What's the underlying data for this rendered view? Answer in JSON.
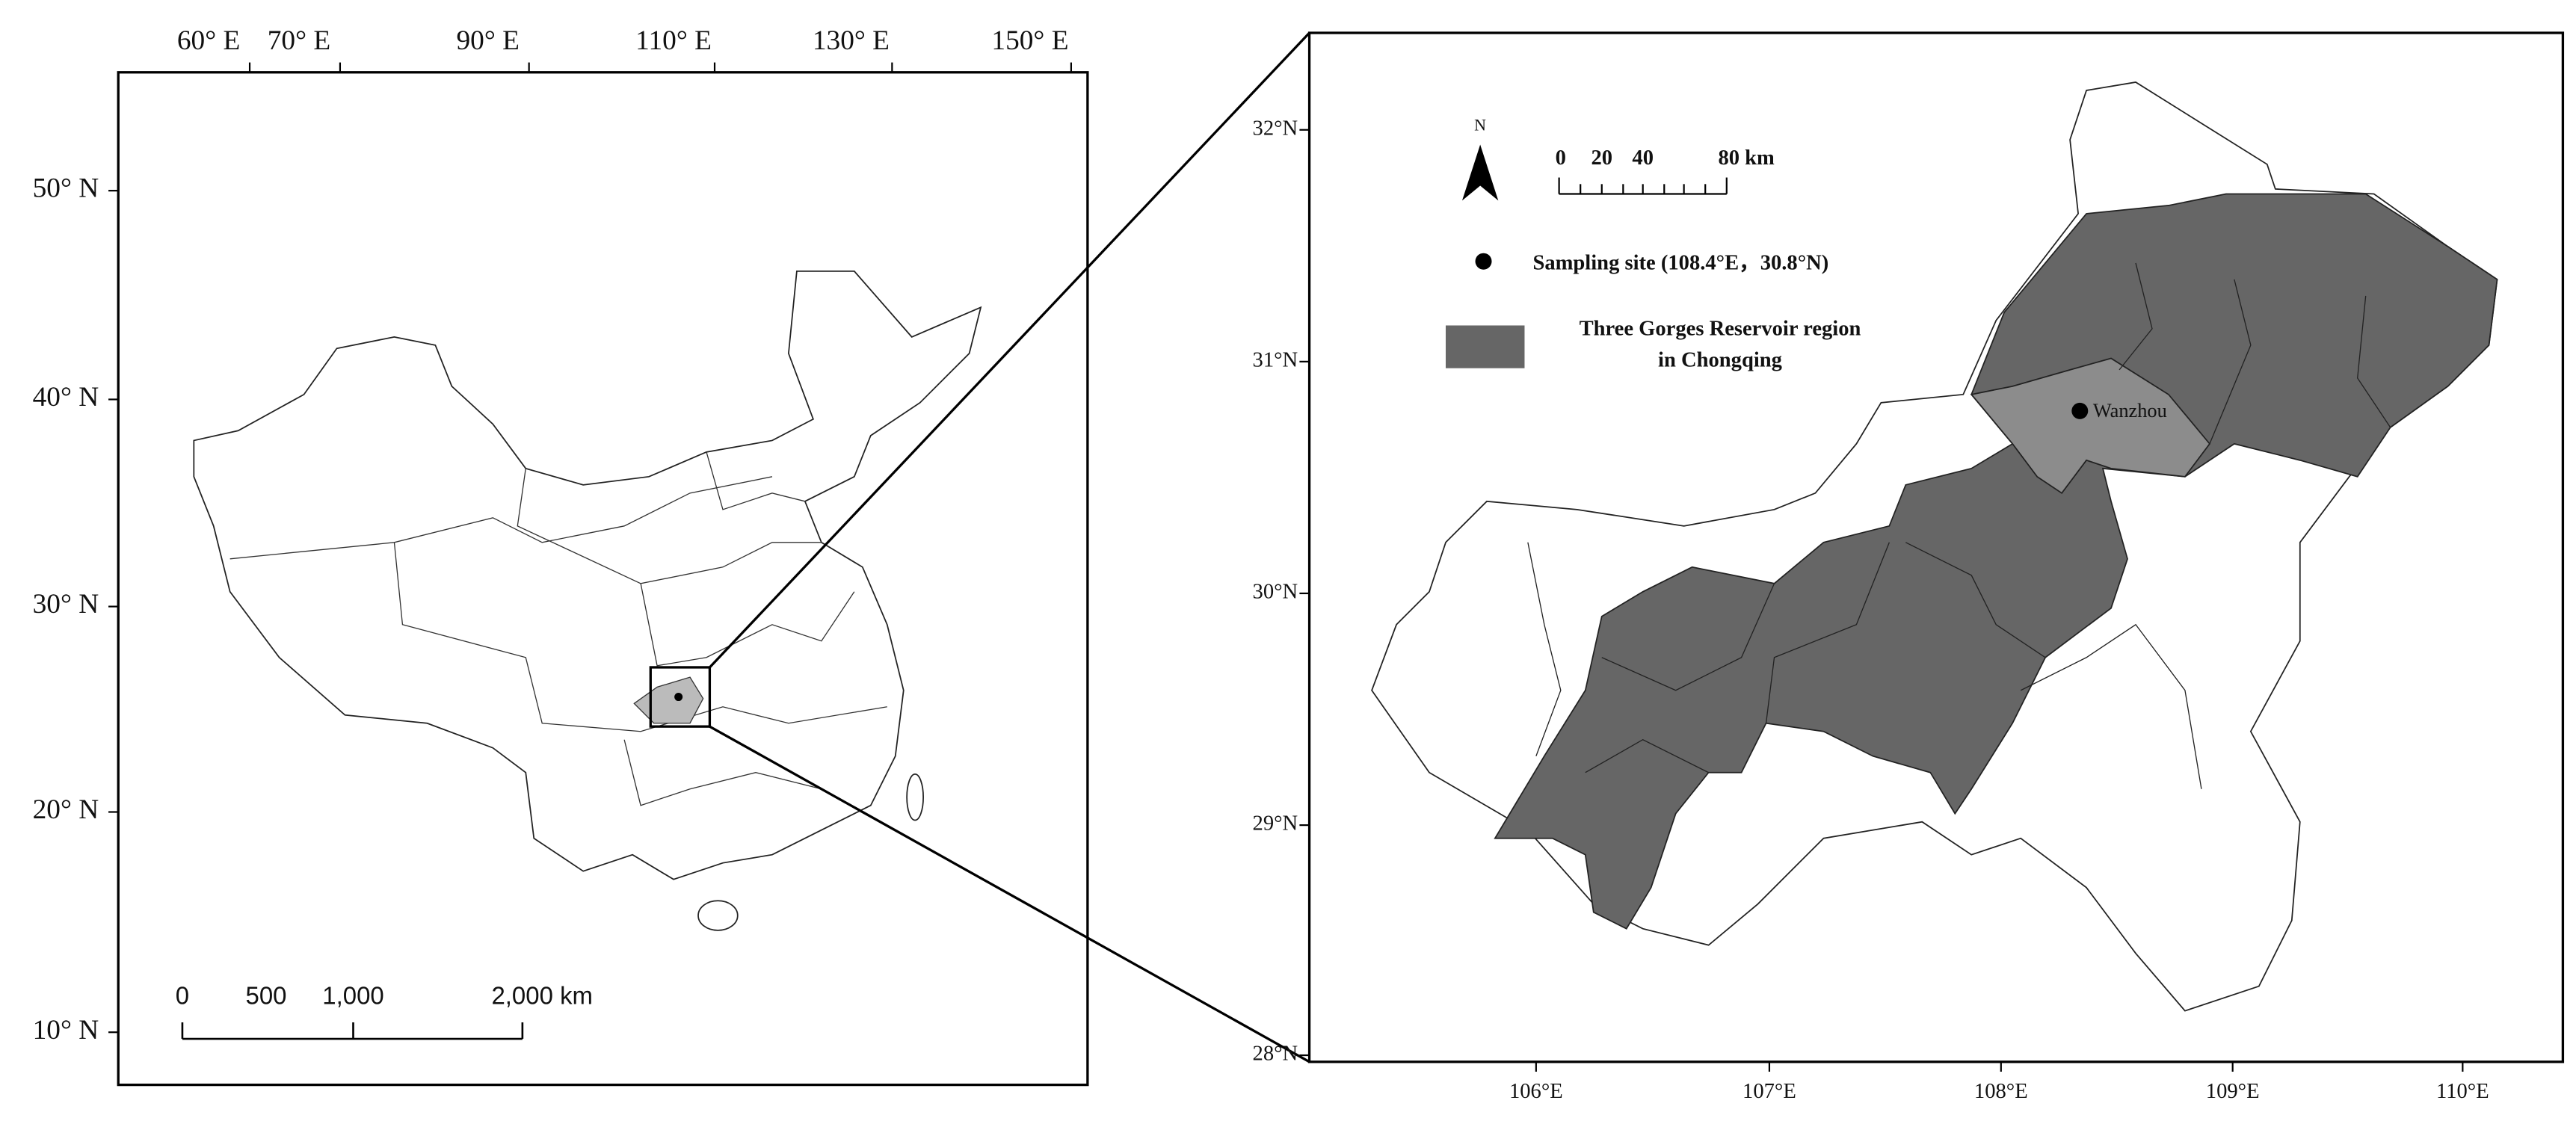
{
  "left_map": {
    "lon_labels": [
      "60° E",
      "70° E",
      "90° E",
      "110° E",
      "130° E",
      "150° E"
    ],
    "lat_labels": [
      "50° N",
      "40° N",
      "30° N",
      "20° N",
      "10° N"
    ],
    "scale_labels": [
      "0",
      "500",
      "1,000",
      "2,000 km"
    ]
  },
  "right_map": {
    "lat_labels": [
      "32°N",
      "31°N",
      "30°N",
      "29°N",
      "28°N"
    ],
    "lon_labels": [
      "106°E",
      "107°E",
      "108°E",
      "109°E",
      "110°E"
    ],
    "north": "N",
    "scale_labels": [
      "0",
      "20",
      "40",
      "80 km"
    ],
    "legend": {
      "sampling_site": "Sampling site (108.4°E，30.8°N)",
      "region_line1": "Three Gorges Reservoir region",
      "region_line2": "in Chongqing"
    },
    "place_label": "Wanzhou"
  }
}
